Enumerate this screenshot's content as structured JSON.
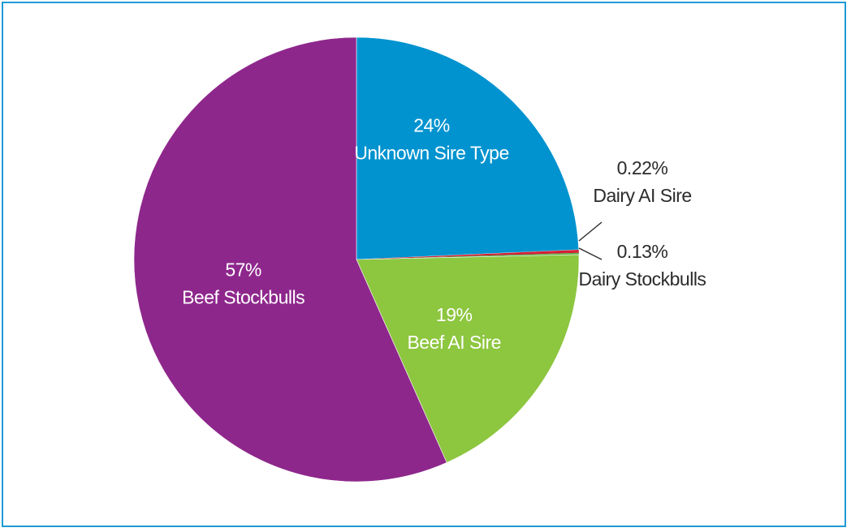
{
  "chart_data": {
    "type": "pie",
    "title": "",
    "start_angle_deg": 0,
    "direction": "clockwise",
    "slices": [
      {
        "pct_label": "24%",
        "name": "Unknown Sire Type",
        "value": 24.3,
        "color": "#0093cf",
        "label_position": "inside"
      },
      {
        "pct_label": "0.22%",
        "name": "Dairy AI Sire",
        "value": 0.22,
        "color": "#d41f35",
        "label_position": "outside"
      },
      {
        "pct_label": "0.13%",
        "name": "Dairy Stockbulls",
        "value": 0.13,
        "color": "#5ab04a",
        "label_position": "outside"
      },
      {
        "pct_label": "19%",
        "name": "Beef AI Sire",
        "value": 18.7,
        "color": "#8dc63f",
        "label_position": "inside"
      },
      {
        "pct_label": "57%",
        "name": "Beef Stockbulls",
        "value": 56.65,
        "color": "#8e278c",
        "label_position": "inside"
      }
    ]
  },
  "frame_color": "#1e9ad6"
}
